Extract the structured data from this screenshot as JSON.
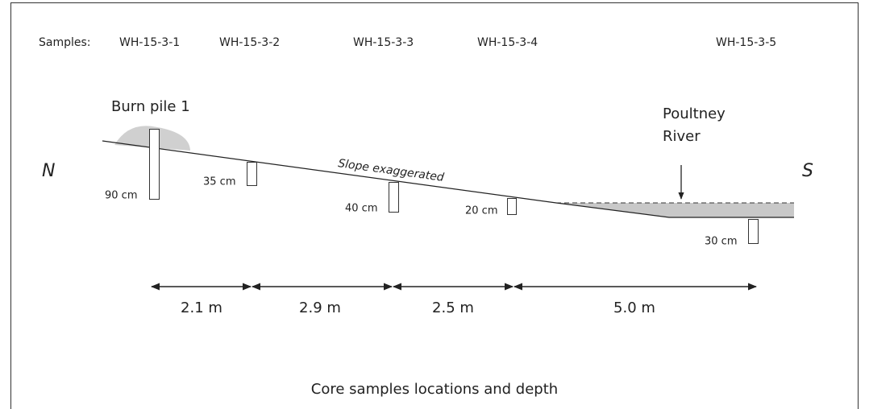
{
  "samples": {
    "label": "Samples:",
    "names": [
      "WH-15-3-1",
      "WH-15-3-2",
      "WH-15-3-3",
      "WH-15-3-4",
      "WH-15-3-5"
    ]
  },
  "burn_pile": "Burn pile 1",
  "river": [
    "Poultney",
    "River"
  ],
  "north": "N",
  "south": "S",
  "slope_note": "Slope exaggerated",
  "depths": [
    "90 cm",
    "35 cm",
    "40 cm",
    "20 cm",
    "30 cm"
  ],
  "distances": [
    "2.1 m",
    "2.9 m",
    "2.5 m",
    "5.0 m"
  ],
  "caption": "Core samples locations and depth"
}
